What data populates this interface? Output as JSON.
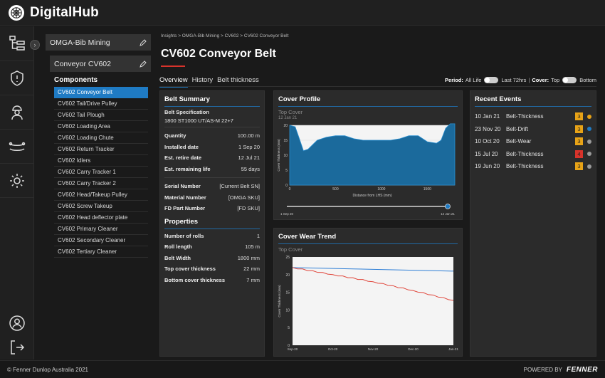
{
  "app": {
    "title": "DigitalHub"
  },
  "breadcrumb": "Insights > OMGA-Bib Mining > CV602 > CV602 Conveyor Belt",
  "page_title": "CV602 Conveyor Belt",
  "tabs": [
    "Overview",
    "History",
    "Belt thickness"
  ],
  "filters": {
    "period_label": "Period:",
    "period_option_a": "All Life",
    "period_option_b": "Last 72hrs",
    "cover_label": "Cover:",
    "cover_option_a": "Top",
    "cover_option_b": "Bottom"
  },
  "tree": {
    "site": "OMGA-Bib Mining",
    "belt": "Conveyor CV602",
    "heading": "Components",
    "items": [
      "CV602 Conveyor Belt",
      "CV602 Tail/Drive Pulley",
      "CV602 Tail Plough",
      "CV602 Loading Area",
      "CV602 Loading Chute",
      "CV602 Return Tracker",
      "CV602 Idlers",
      "CV602 Carry Tracker 1",
      "CV602 Carry Tracker 2",
      "CV602 Head/Takeup Pulley",
      "CV602 Screw Takeup",
      "CV602 Head deflector plate",
      "CV602 Primary Cleaner",
      "CV602 Secondary Cleaner",
      "CV602 Tertiary Cleaner"
    ]
  },
  "summary": {
    "title": "Belt Summary",
    "spec_label": "Belt Specification",
    "spec_value": "1800 ST1000 UT/AS-M 22+7",
    "rows_a": [
      {
        "k": "Quantity",
        "v": "100.00 m"
      },
      {
        "k": "Installed date",
        "v": "1 Sep 20"
      },
      {
        "k": "Est. retire date",
        "v": "12 Jul 21"
      },
      {
        "k": "Est. remaining life",
        "v": "55 days"
      }
    ],
    "rows_b": [
      {
        "k": "Serial Number",
        "v": "[Current Belt SN]"
      },
      {
        "k": "Material Number",
        "v": "[OMGA SKU]"
      },
      {
        "k": "FD Part Number",
        "v": "[FD SKU]"
      }
    ],
    "properties_title": "Properties",
    "rows_c": [
      {
        "k": "Number of rolls",
        "v": "1"
      },
      {
        "k": "Roll length",
        "v": "105 m"
      },
      {
        "k": "Belt Width",
        "v": "1800 mm"
      },
      {
        "k": "Top cover thickness",
        "v": "22 mm"
      },
      {
        "k": "Bottom cover thickness",
        "v": "7 mm"
      }
    ]
  },
  "cover_profile": {
    "title": "Cover Profile",
    "subtitle": "Top Cover",
    "date": "12 Jan 21",
    "slider_start": "1 Sep 20",
    "slider_end": "12 Jan 21"
  },
  "cover_wear": {
    "title": "Cover Wear Trend",
    "subtitle": "Top Cover"
  },
  "events": {
    "title": "Recent Events",
    "rows": [
      {
        "date": "10 Jan 21",
        "type": "Belt-Thickness",
        "count": "3",
        "badge": "#e8a317",
        "dot": "#e8a317"
      },
      {
        "date": "23 Nov 20",
        "type": "Belt-Drift",
        "count": "3",
        "badge": "#e8a317",
        "dot": "#1f7bc4"
      },
      {
        "date": "10 Oct 20",
        "type": "Belt-Wear",
        "count": "3",
        "badge": "#e8a317",
        "dot": "#9a9a9a"
      },
      {
        "date": "15 Jul 20",
        "type": "Belt-Thickness",
        "count": "4",
        "badge": "#d8332b",
        "dot": "#9a9a9a"
      },
      {
        "date": "19 Jun 20",
        "type": "Belt-Thickness",
        "count": "3",
        "badge": "#e8a317",
        "dot": "#9a9a9a"
      }
    ]
  },
  "footer": {
    "copyright": "© Fenner Dunlop Australia 2021",
    "powered": "POWERED BY",
    "brand": "FENNER"
  },
  "chart_data": [
    {
      "type": "area",
      "title": "Cover Profile",
      "subtitle": "Top Cover",
      "xlabel": "Distance from LHS (mm)",
      "ylabel": "Cover Thickness (mm)",
      "xlim": [
        0,
        1800
      ],
      "ylim": [
        0,
        20
      ],
      "xticks": [
        0,
        500,
        1000,
        1500
      ],
      "yticks": [
        0,
        5,
        10,
        15,
        20
      ],
      "x": [
        0,
        60,
        100,
        150,
        200,
        250,
        300,
        400,
        500,
        600,
        700,
        800,
        900,
        1000,
        1100,
        1200,
        1300,
        1400,
        1500,
        1600,
        1650,
        1700,
        1750,
        1800
      ],
      "y": [
        20,
        19.5,
        16,
        11.5,
        12,
        13.5,
        15,
        16,
        16.5,
        16.5,
        15.5,
        15,
        15,
        15,
        15,
        15.5,
        16.5,
        16.5,
        14.5,
        14,
        15,
        19,
        20.5,
        20.5
      ],
      "color": "#1b6a9c"
    },
    {
      "type": "line",
      "title": "Cover Wear Trend",
      "subtitle": "Top Cover",
      "ylabel": "Cover Thickness (mm)",
      "xticks": [
        "Sep-20",
        "Oct-20",
        "Nov-20",
        "Dec-20",
        "Jan-21"
      ],
      "ylim": [
        0,
        25
      ],
      "yticks": [
        0,
        5,
        10,
        15,
        20,
        25
      ],
      "series": [
        {
          "color": "#2f7fd6",
          "x": [
            "Sep-20",
            "Jan-21"
          ],
          "values": [
            22,
            21
          ]
        },
        {
          "color": "#e0453a",
          "x": [
            "Sep-20",
            "Oct-20",
            "Nov-20",
            "Dec-20",
            "Jan-21"
          ],
          "values": [
            22,
            20,
            18,
            15.5,
            12.7
          ]
        }
      ]
    }
  ]
}
